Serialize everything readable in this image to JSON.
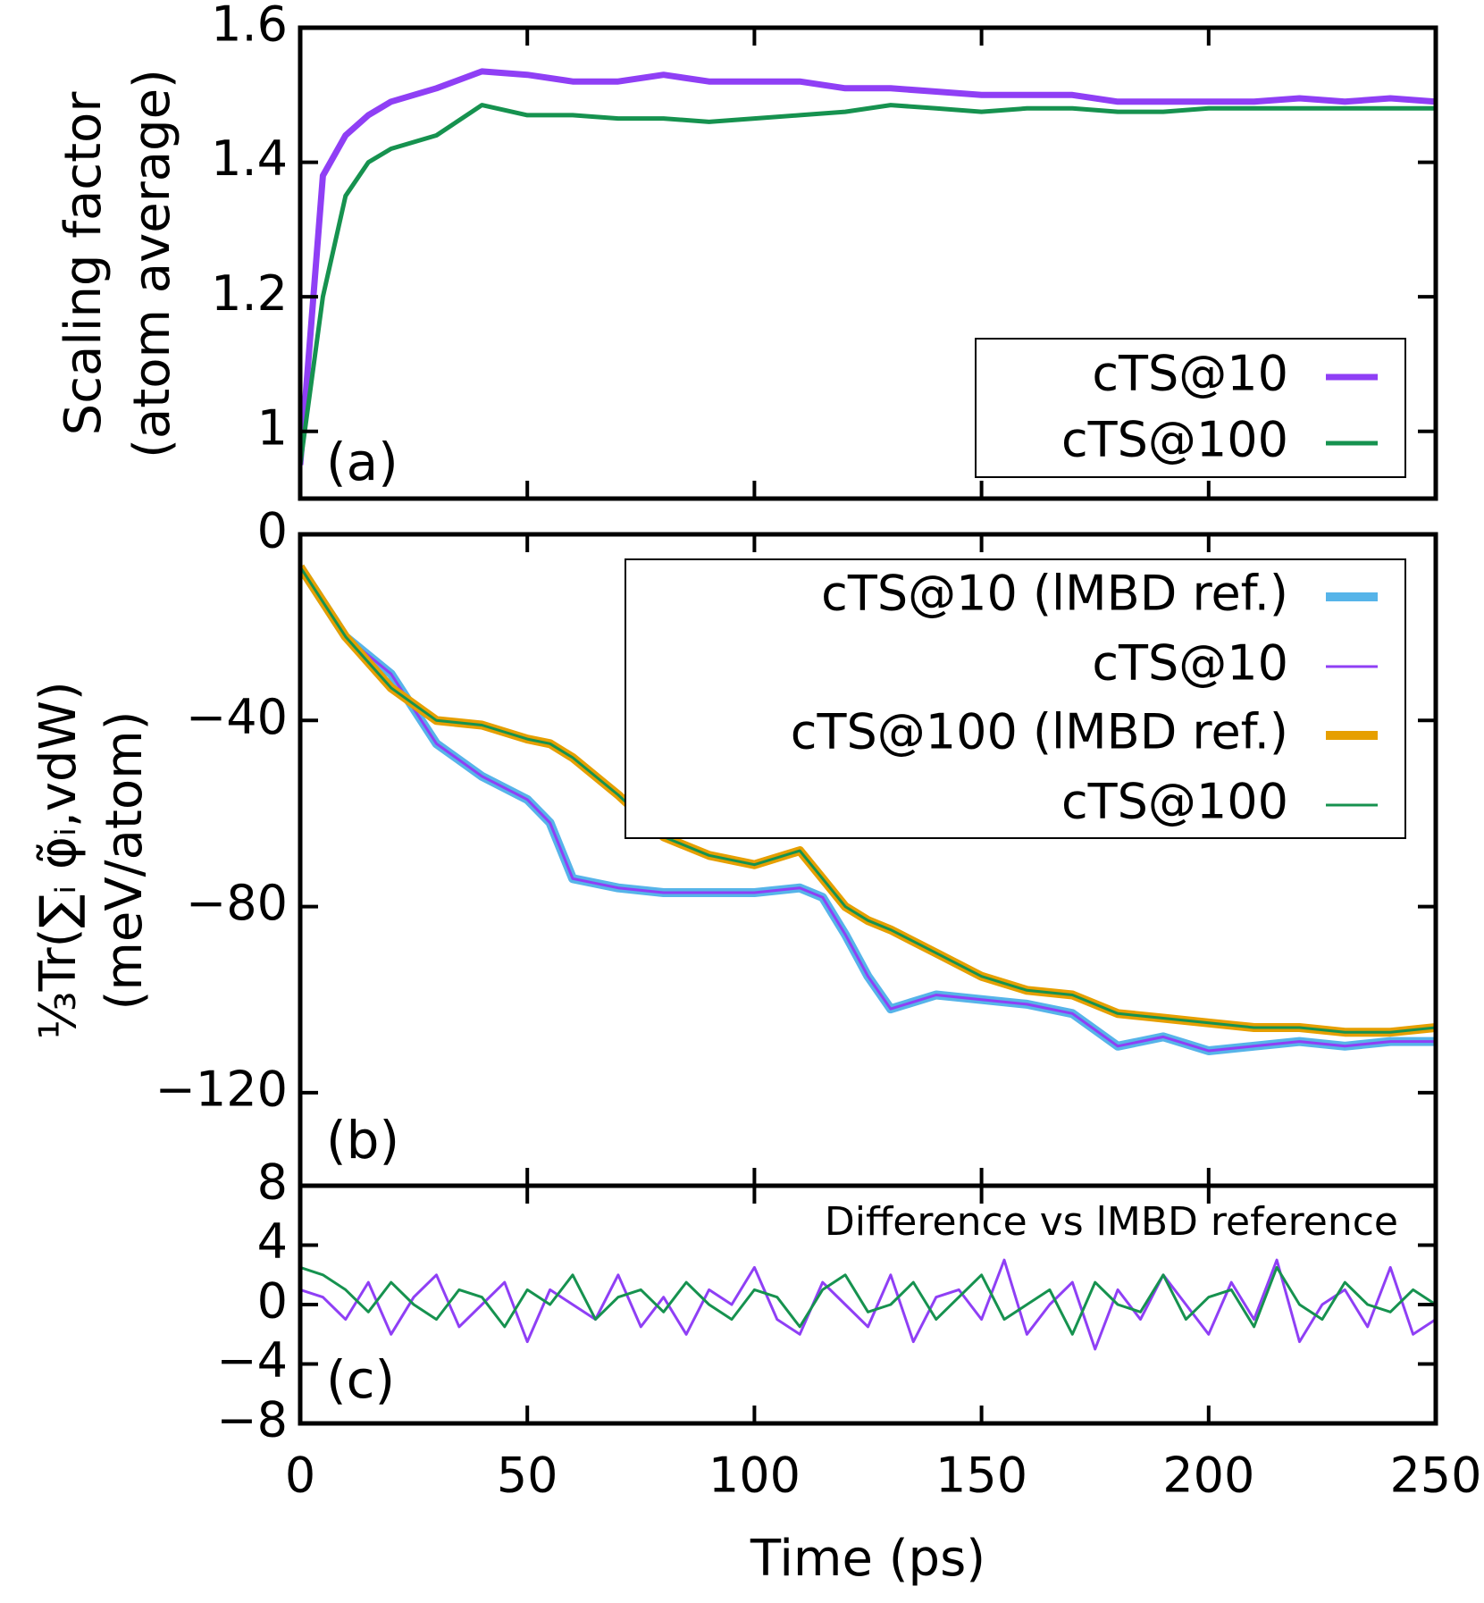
{
  "chart_data": [
    {
      "type": "line",
      "ylabel": [
        "Scaling factor",
        "(atom average)"
      ],
      "annotation": "(a)",
      "x": [
        0,
        5,
        10,
        15,
        20,
        25,
        30,
        40,
        50,
        60,
        70,
        80,
        90,
        100,
        110,
        120,
        130,
        140,
        150,
        160,
        170,
        180,
        190,
        200,
        210,
        220,
        230,
        240,
        250
      ],
      "series": [
        {
          "name": "cTS@10",
          "color": "#8f3ff5",
          "values": [
            0.95,
            1.38,
            1.44,
            1.47,
            1.49,
            1.5,
            1.51,
            1.535,
            1.53,
            1.52,
            1.52,
            1.53,
            1.52,
            1.52,
            1.52,
            1.51,
            1.51,
            1.505,
            1.5,
            1.5,
            1.5,
            1.49,
            1.49,
            1.49,
            1.49,
            1.495,
            1.49,
            1.495,
            1.49
          ]
        },
        {
          "name": "cTS@100",
          "color": "#16924f",
          "values": [
            0.95,
            1.2,
            1.35,
            1.4,
            1.42,
            1.43,
            1.44,
            1.485,
            1.47,
            1.47,
            1.465,
            1.465,
            1.46,
            1.465,
            1.47,
            1.475,
            1.485,
            1.48,
            1.475,
            1.48,
            1.48,
            1.475,
            1.475,
            1.48,
            1.48,
            1.48,
            1.48,
            1.48,
            1.48
          ]
        }
      ],
      "xlim": [
        0,
        250
      ],
      "xticks": [
        0,
        50,
        100,
        150,
        200,
        250
      ],
      "ylim": [
        0.9,
        1.6
      ],
      "yticks": [
        1,
        1.2,
        1.4,
        1.6
      ],
      "legend": "lower right"
    },
    {
      "type": "line",
      "ylabel": [
        "⅓Tr(∑ᵢ φ̃ᵢ,vdW)",
        "(meV/atom)"
      ],
      "annotation": "(b)",
      "x": [
        0,
        10,
        20,
        30,
        40,
        50,
        55,
        60,
        70,
        80,
        90,
        100,
        110,
        115,
        120,
        125,
        130,
        140,
        150,
        160,
        170,
        180,
        190,
        200,
        210,
        220,
        230,
        240,
        250
      ],
      "series": [
        {
          "name": "cTS@10 (lMBD ref.)",
          "color": "#56b4e9",
          "values": [
            -7,
            -22,
            -30,
            -45,
            -52,
            -57,
            -62,
            -74,
            -76,
            -77,
            -77,
            -77,
            -76,
            -78,
            -86,
            -95,
            -102,
            -99,
            -100,
            -101,
            -103,
            -110,
            -108,
            -111,
            -110,
            -109,
            -110,
            -109,
            -109
          ]
        },
        {
          "name": "cTS@10",
          "color": "#8f3ff5",
          "values": [
            -7,
            -22,
            -30,
            -45,
            -52,
            -57,
            -62,
            -74,
            -76,
            -77,
            -77,
            -77,
            -76,
            -78,
            -86,
            -95,
            -102,
            -99,
            -100,
            -101,
            -103,
            -110,
            -108,
            -111,
            -110,
            -109,
            -110,
            -109,
            -109
          ]
        },
        {
          "name": "cTS@100 (lMBD ref.)",
          "color": "#e69f00",
          "values": [
            -7,
            -22,
            -33,
            -40,
            -41,
            -44,
            -45,
            -48,
            -56,
            -65,
            -69,
            -71,
            -68,
            -74,
            -80,
            -83,
            -85,
            -90,
            -95,
            -98,
            -99,
            -103,
            -104,
            -105,
            -106,
            -106,
            -107,
            -107,
            -106
          ]
        },
        {
          "name": "cTS@100",
          "color": "#16924f",
          "values": [
            -7,
            -22,
            -33,
            -40,
            -41,
            -44,
            -45,
            -48,
            -56,
            -65,
            -69,
            -71,
            -68,
            -74,
            -80,
            -83,
            -85,
            -90,
            -95,
            -98,
            -99,
            -103,
            -104,
            -105,
            -106,
            -106,
            -107,
            -107,
            -106
          ]
        }
      ],
      "xlim": [
        0,
        250
      ],
      "xticks": [
        0,
        50,
        100,
        150,
        200,
        250
      ],
      "ylim": [
        -140,
        0
      ],
      "yticks": [
        0,
        {
          "value": -40,
          "label": "−40"
        },
        {
          "value": -80,
          "label": "−80"
        },
        {
          "value": -120,
          "label": "−120"
        }
      ],
      "legend": "upper right"
    },
    {
      "type": "line",
      "annotation": "(c)",
      "subtitle": "Difference vs lMBD reference",
      "xlabel": "Time (ps)",
      "x": [
        0,
        5,
        10,
        15,
        20,
        25,
        30,
        35,
        40,
        45,
        50,
        55,
        60,
        65,
        70,
        75,
        80,
        85,
        90,
        95,
        100,
        105,
        110,
        115,
        120,
        125,
        130,
        135,
        140,
        145,
        150,
        155,
        160,
        165,
        170,
        175,
        180,
        185,
        190,
        195,
        200,
        205,
        210,
        215,
        220,
        225,
        230,
        235,
        240,
        245,
        250
      ],
      "series": [
        {
          "color": "#8f3ff5",
          "values": [
            1,
            0.5,
            -1,
            1.5,
            -2,
            0.5,
            2,
            -1.5,
            0,
            1.5,
            -2.5,
            1,
            0,
            -1,
            2,
            -1.5,
            0.5,
            -2,
            1,
            0,
            2.5,
            -1,
            -2,
            1.5,
            0,
            -1.5,
            2,
            -2.5,
            0.5,
            1,
            -1,
            3,
            -2,
            0,
            1.5,
            -3,
            1,
            -1,
            2,
            0,
            -2,
            1.5,
            -1,
            3,
            -2.5,
            0,
            1,
            -1.5,
            2.5,
            -2,
            -1
          ]
        },
        {
          "color": "#16924f",
          "values": [
            2.5,
            2,
            1,
            -0.5,
            1.5,
            0,
            -1,
            1,
            0.5,
            -1.5,
            1,
            0,
            2,
            -1,
            0.5,
            1,
            -0.5,
            1.5,
            0,
            -1,
            1,
            0.5,
            -1.5,
            1,
            2,
            -0.5,
            0,
            1.5,
            -1,
            0.5,
            2,
            -1,
            0,
            1,
            -2,
            1.5,
            0,
            -0.5,
            2,
            -1,
            0.5,
            1,
            -1.5,
            2.5,
            0,
            -1,
            1.5,
            0,
            -0.5,
            1,
            0
          ]
        }
      ],
      "xlim": [
        0,
        250
      ],
      "xticks": [
        0,
        50,
        100,
        150,
        200,
        250
      ],
      "ylim": [
        -8,
        8
      ],
      "yticks": [
        {
          "value": -8,
          "label": "−8"
        },
        {
          "value": -4,
          "label": "−4"
        },
        0,
        4,
        8
      ]
    }
  ]
}
